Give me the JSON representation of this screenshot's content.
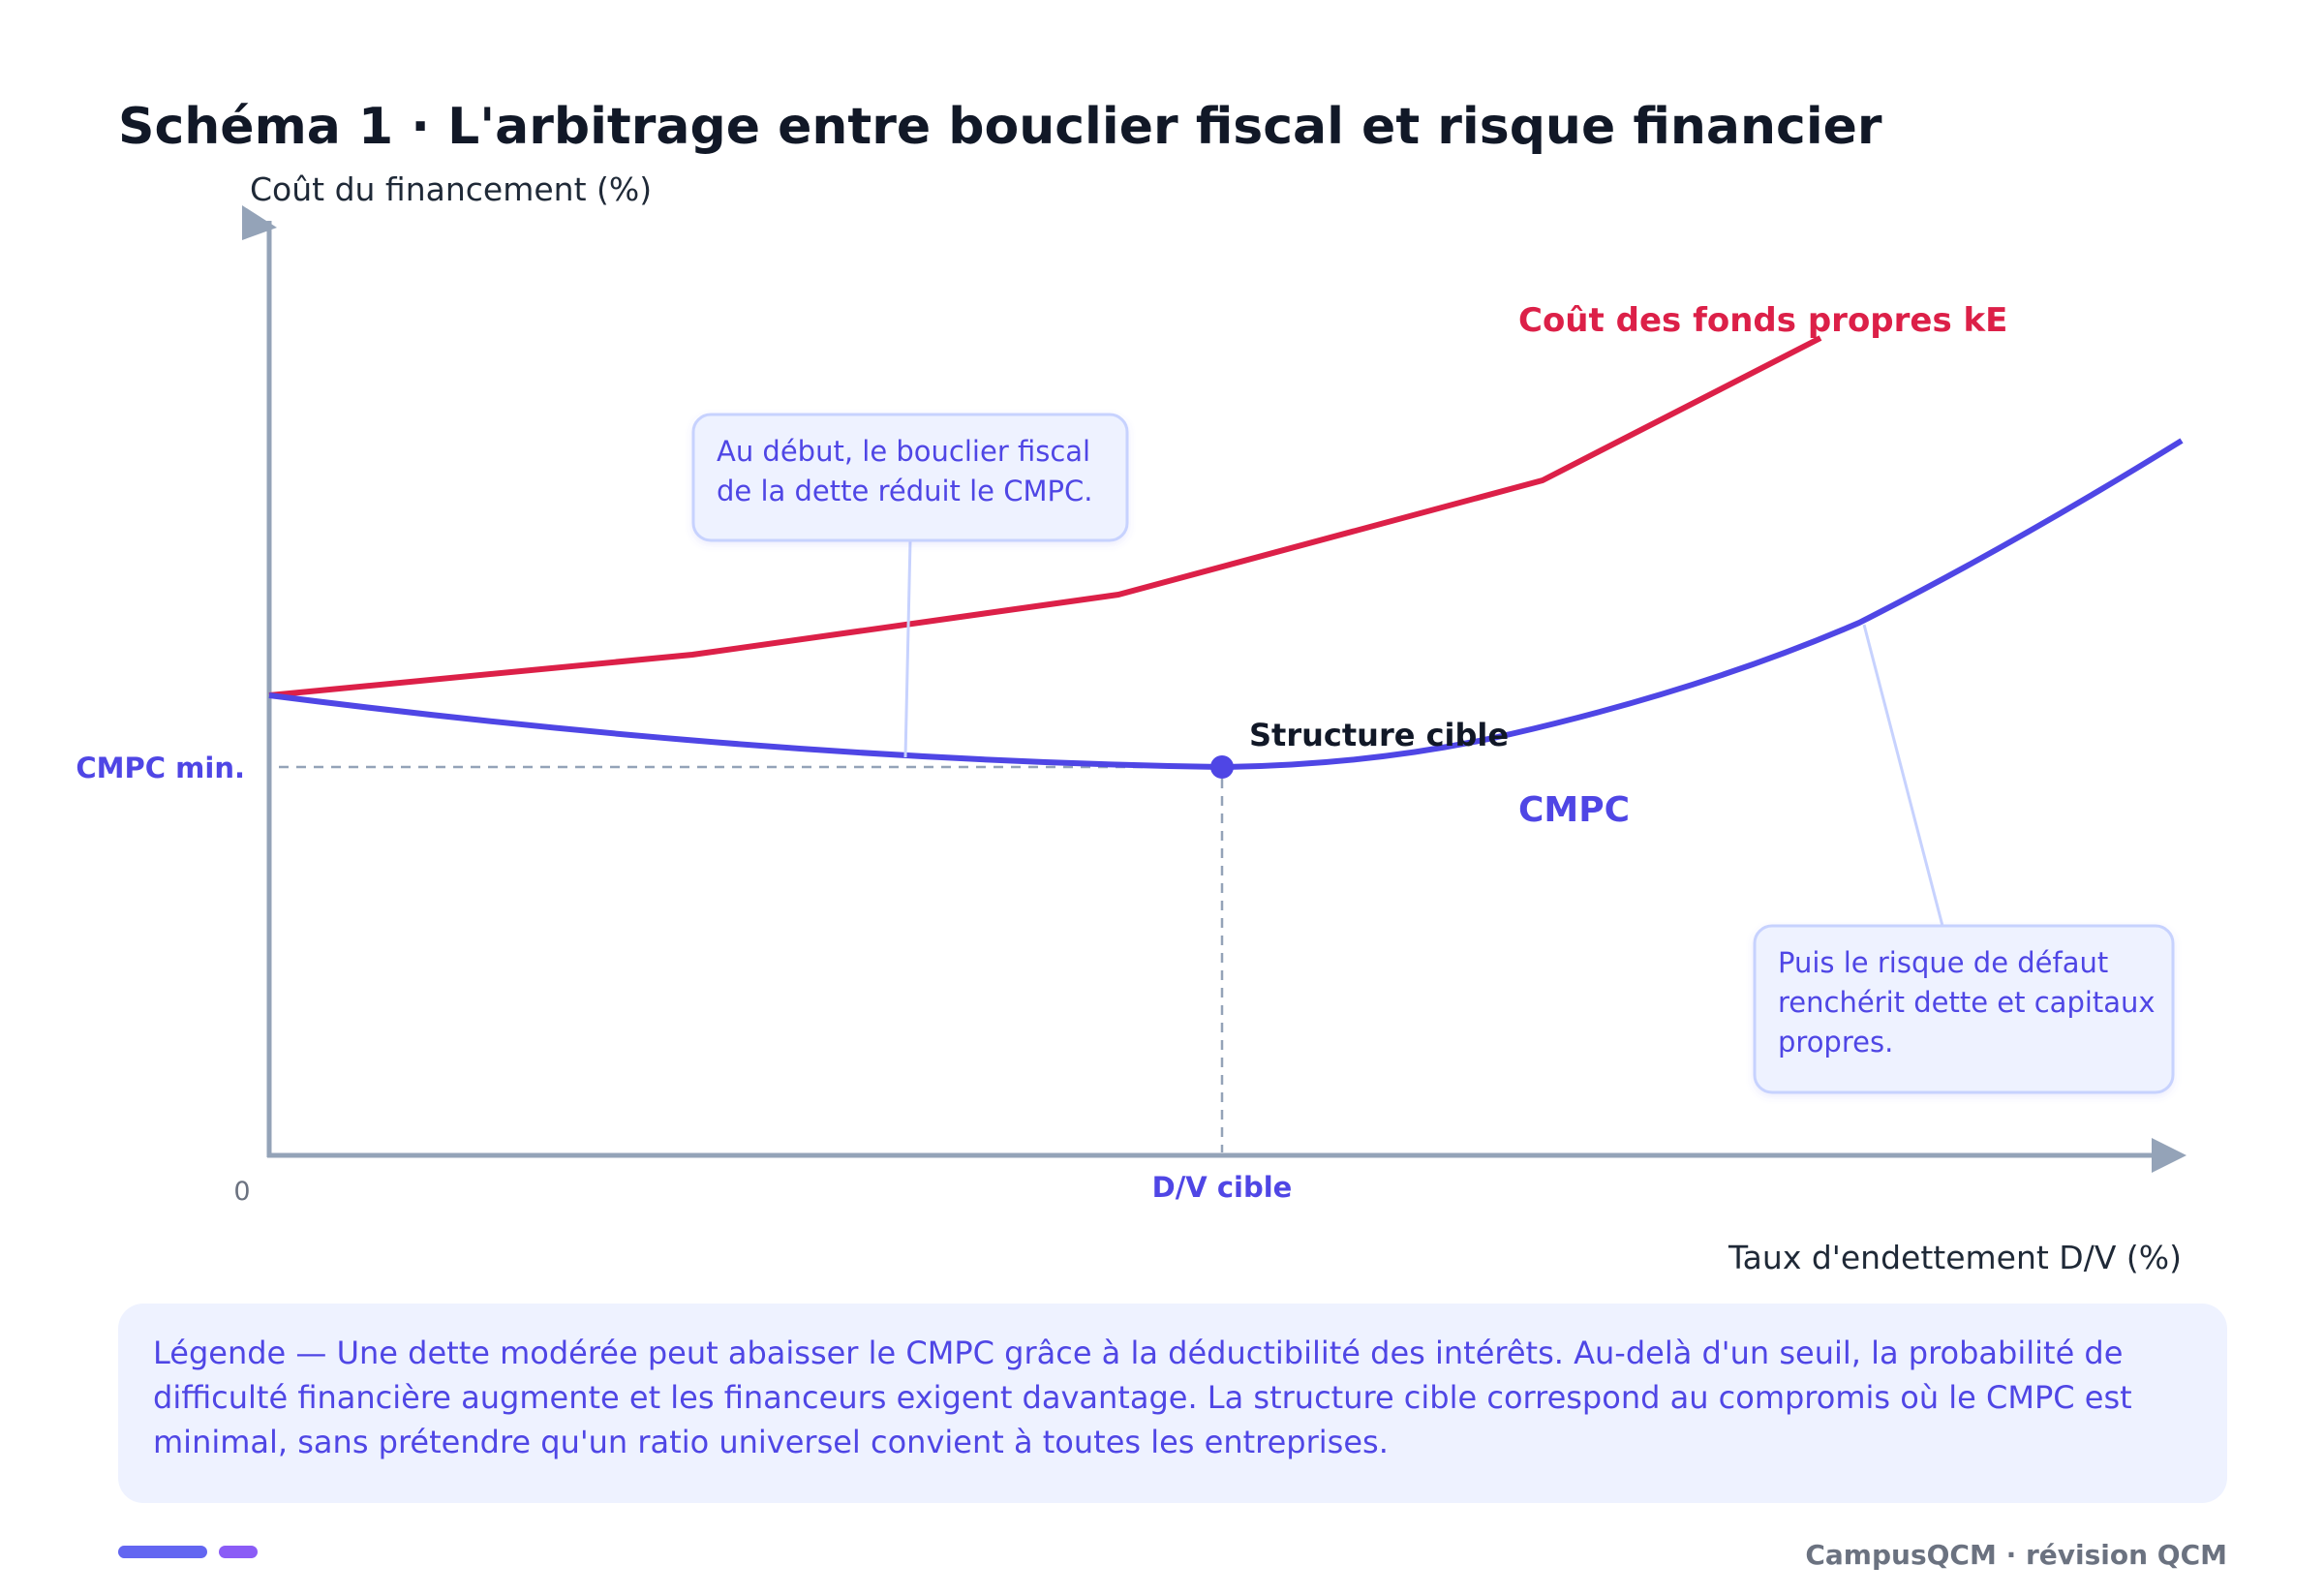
{
  "title": "Schéma 1 · L'arbitrage entre bouclier fiscal et risque financier",
  "y_axis_label": "Coût du financement (%)",
  "x_axis_label": "Taux d'endettement D/V (%)",
  "origin_label": "0",
  "y_marker_label": "CMPC min.",
  "x_marker_label": "D/V cible",
  "target_label": "Structure cible",
  "colors": {
    "equity": "#dc2048",
    "wacc": "#4f46e5",
    "axis": "#94a3b8",
    "callout_bg": "#eef2ff",
    "callout_border": "#c7d2fe",
    "legend_bg": "#eef2ff"
  },
  "series": [
    {
      "name": "Coût des fonds propres kE",
      "key": "equity"
    },
    {
      "name": "CMPC",
      "key": "wacc"
    }
  ],
  "callouts": [
    {
      "lines": [
        "Au début, le bouclier fiscal",
        "de la dette réduit le CMPC."
      ]
    },
    {
      "lines": [
        "Puis le risque de défaut",
        "renchérit dette et capitaux",
        "propres."
      ]
    }
  ],
  "legend": {
    "lines": [
      "Légende — Une dette modérée peut abaisser le CMPC grâce à la déductibilité des intérêts. Au-delà d'un seuil, la probabilité de",
      "difficulté financière augmente et les financeurs exigent davantage. La structure cible correspond au compromis où le CMPC est",
      "minimal, sans prétendre qu'un ratio universel convient à toutes les entreprises."
    ]
  },
  "footer": "CampusQCM · révision QCM"
}
